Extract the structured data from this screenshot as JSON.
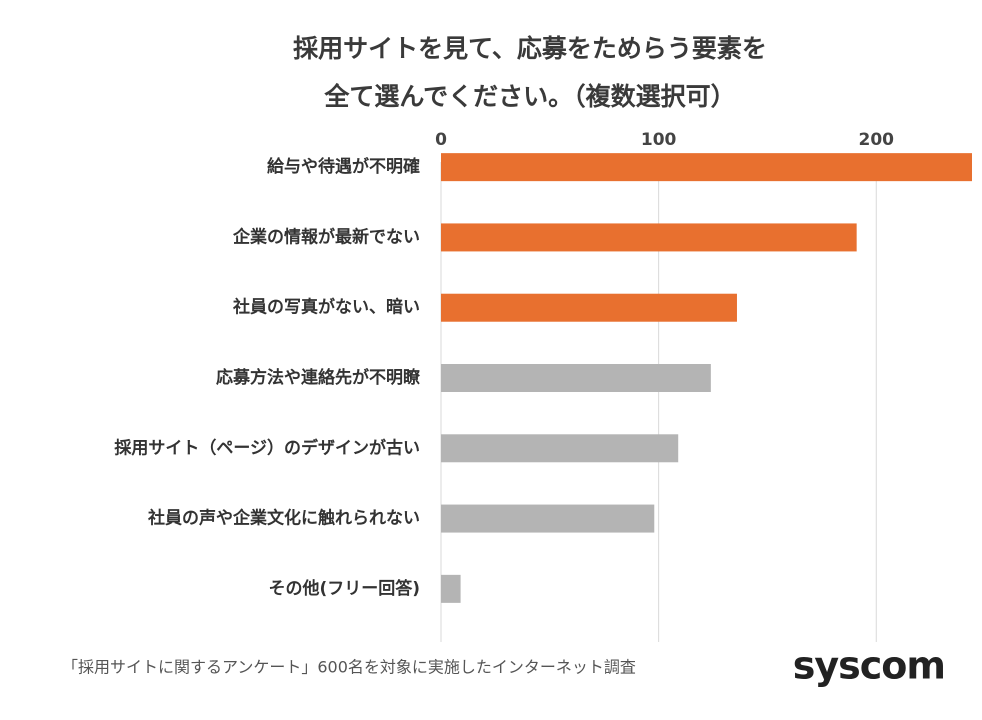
{
  "chart_data": {
    "type": "hbar",
    "title": [
      "採用サイトを見て、応募をためらう要素を",
      "全て選んでください。（複数選択可）"
    ],
    "categories": [
      "給与や待遇が不明確",
      "企業の情報が最新でない",
      "社員の写真がない、暗い",
      "応募方法や連絡先が不明瞭",
      "採用サイト（ページ）のデザインが古い",
      "社員の声や企業文化に触れられない",
      "その他(フリー回答)"
    ],
    "values": [
      244,
      191,
      136,
      124,
      109,
      98,
      9
    ],
    "colors": [
      "#e8702f",
      "#e8702f",
      "#e8702f",
      "#b4b4b4",
      "#b4b4b4",
      "#b4b4b4",
      "#b4b4b4"
    ],
    "xlim": [
      0,
      244
    ],
    "xticks": [
      0,
      100,
      200
    ],
    "grid": true,
    "note": "「採用サイトに関するアンケート」600名を対象に実施したインターネット調査",
    "logo": "syscom"
  }
}
